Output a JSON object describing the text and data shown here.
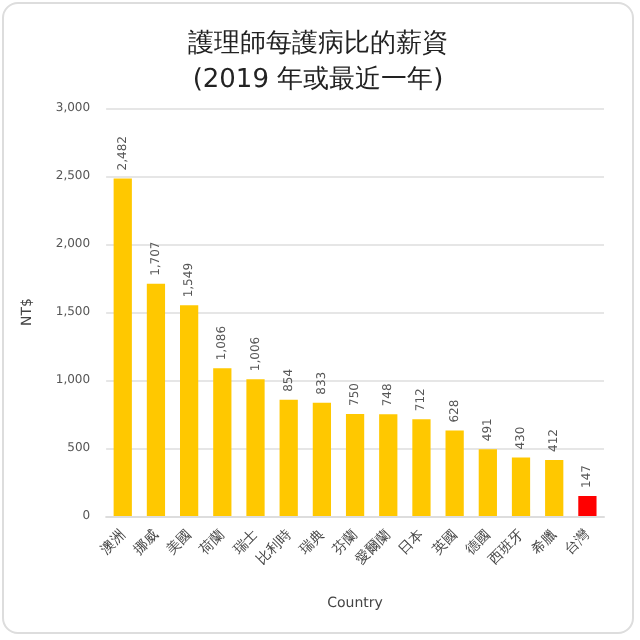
{
  "chart_data": {
    "type": "bar",
    "title": "護理師每護病比的薪資\n(2019 年或最近一年)",
    "xlabel": "Country",
    "ylabel": "NT$",
    "categories": [
      "澳洲",
      "挪威",
      "美國",
      "荷蘭",
      "瑞士",
      "比利時",
      "瑞典",
      "芬蘭",
      "愛爾蘭",
      "日本",
      "英國",
      "德國",
      "西班牙",
      "希臘",
      "台灣"
    ],
    "values": [
      2482,
      1707,
      1549,
      1086,
      1006,
      854,
      833,
      750,
      748,
      712,
      628,
      491,
      430,
      412,
      147
    ],
    "colors": [
      "#ffc800",
      "#ffc800",
      "#ffc800",
      "#ffc800",
      "#ffc800",
      "#ffc800",
      "#ffc800",
      "#ffc800",
      "#ffc800",
      "#ffc800",
      "#ffc800",
      "#ffc800",
      "#ffc800",
      "#ffc800",
      "#ff0000"
    ],
    "value_labels": [
      "2,482",
      "1,707",
      "1,549",
      "1,086",
      "1,006",
      "854",
      "833",
      "750",
      "748",
      "712",
      "628",
      "491",
      "430",
      "412",
      "147"
    ],
    "ylim": [
      0,
      3000
    ],
    "yticks": [
      0,
      500,
      {
        "value": 1000,
        "label": "1,000"
      },
      {
        "value": 1500,
        "label": "1,500"
      },
      {
        "value": 2000,
        "label": "2,000"
      },
      {
        "value": 2500,
        "label": "2,500"
      },
      {
        "value": 3000,
        "label": "3,000"
      }
    ],
    "grid": "y"
  }
}
